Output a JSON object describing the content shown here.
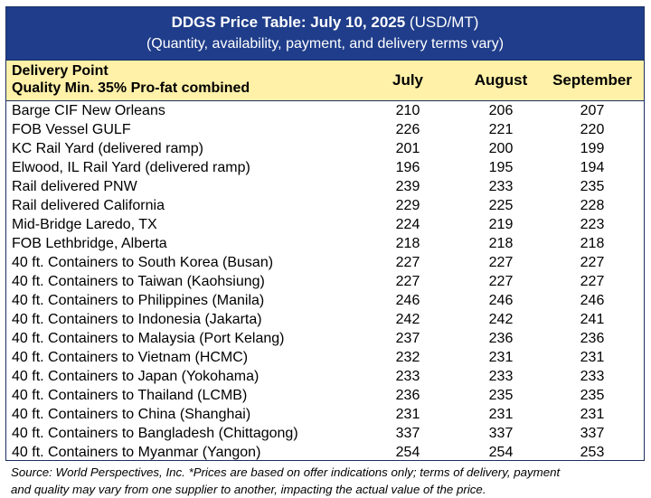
{
  "title": {
    "main": "DDGS Price Table: July 10, 2025",
    "units": "(USD/MT)",
    "subtitle": "(Quantity, availability, payment, and delivery terms vary)"
  },
  "header": {
    "line1": "Delivery Point",
    "line2": "Quality Min. 35% Pro-fat combined",
    "col_july": "July",
    "col_august": "August",
    "col_september": "September"
  },
  "rows": [
    {
      "name": "Barge CIF New Orleans",
      "july": "210",
      "august": "206",
      "september": "207"
    },
    {
      "name": "FOB Vessel GULF",
      "july": "226",
      "august": "221",
      "september": "220"
    },
    {
      "name": "KC Rail Yard (delivered ramp)",
      "july": "201",
      "august": "200",
      "september": "199"
    },
    {
      "name": "Elwood, IL Rail Yard (delivered ramp)",
      "july": "196",
      "august": "195",
      "september": "194"
    },
    {
      "name": "Rail delivered PNW",
      "july": "239",
      "august": "233",
      "september": "235"
    },
    {
      "name": "Rail delivered California",
      "july": "229",
      "august": "225",
      "september": "228"
    },
    {
      "name": "Mid-Bridge Laredo, TX",
      "july": "224",
      "august": "219",
      "september": "223"
    },
    {
      "name": "FOB Lethbridge, Alberta",
      "july": "218",
      "august": "218",
      "september": "218"
    },
    {
      "name": "40 ft. Containers to South Korea (Busan)",
      "july": "227",
      "august": "227",
      "september": "227"
    },
    {
      "name": "40 ft. Containers to Taiwan (Kaohsiung)",
      "july": "227",
      "august": "227",
      "september": "227"
    },
    {
      "name": "40 ft. Containers to Philippines (Manila)",
      "july": "246",
      "august": "246",
      "september": "246"
    },
    {
      "name": "40 ft. Containers to Indonesia (Jakarta)",
      "july": "242",
      "august": "242",
      "september": "241"
    },
    {
      "name": "40 ft. Containers to Malaysia (Port Kelang)",
      "july": "237",
      "august": "236",
      "september": "236"
    },
    {
      "name": "40 ft. Containers to Vietnam (HCMC)",
      "july": "232",
      "august": "231",
      "september": "231"
    },
    {
      "name": "40 ft. Containers to Japan (Yokohama)",
      "july": "233",
      "august": "233",
      "september": "233"
    },
    {
      "name": "40 ft. Containers to Thailand (LCMB)",
      "july": "236",
      "august": "235",
      "september": "235"
    },
    {
      "name": "40 ft. Containers to China (Shanghai)",
      "july": "231",
      "august": "231",
      "september": "231"
    },
    {
      "name": "40 ft. Containers to Bangladesh (Chittagong)",
      "july": "337",
      "august": "337",
      "september": "337"
    },
    {
      "name": "40 ft. Containers to Myanmar (Yangon)",
      "july": "254",
      "august": "254",
      "september": "253"
    }
  ],
  "footer": {
    "line1": "Source: World Perspectives, Inc. *Prices are based on offer indications only; terms of delivery, payment",
    "line2": "and quality may vary from one supplier to another, impacting the actual value of the price."
  },
  "colors": {
    "title_bg": "#1f3d8a",
    "header_bg": "#fff1a8",
    "border": "#1c2f63"
  }
}
